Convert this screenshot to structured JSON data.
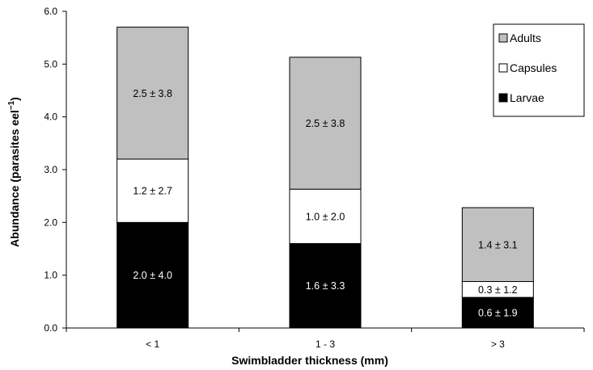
{
  "chart_data": {
    "type": "bar",
    "stacked": true,
    "title": "",
    "xlabel": "Swimbladder thickness (mm)",
    "ylabel": "Abundance (parasites eel",
    "ylabel_superscript": "−1",
    "ylabel_suffix": ")",
    "ylim": [
      0,
      6
    ],
    "y_ticks": [
      "0.0",
      "1.0",
      "2.0",
      "3.0",
      "4.0",
      "5.0",
      "6.0"
    ],
    "categories": [
      "< 1",
      "1 - 3",
      "> 3"
    ],
    "grid": false,
    "legend_position": "top-right",
    "series": [
      {
        "name": "Larvae",
        "color": "#000000",
        "label_color": "#ffffff",
        "values": [
          2.0,
          1.6,
          0.58
        ],
        "labels": [
          "2.0 ± 4.0",
          "1.6 ± 3.3",
          "0.6 ± 1.9"
        ]
      },
      {
        "name": "Capsules",
        "color": "#ffffff",
        "label_color": "#000000",
        "values": [
          1.2,
          1.03,
          0.3
        ],
        "labels": [
          "1.2 ± 2.7",
          "1.0 ± 2.0",
          "0.3 ± 1.2"
        ]
      },
      {
        "name": "Adults",
        "color": "#c0c0c0",
        "label_color": "#000000",
        "values": [
          2.5,
          2.5,
          1.4
        ],
        "labels": [
          "2.5 ± 3.8",
          "2.5 ± 3.8",
          "1.4 ± 3.1"
        ]
      }
    ],
    "legend_order": [
      "Adults",
      "Capsules",
      "Larvae"
    ]
  }
}
